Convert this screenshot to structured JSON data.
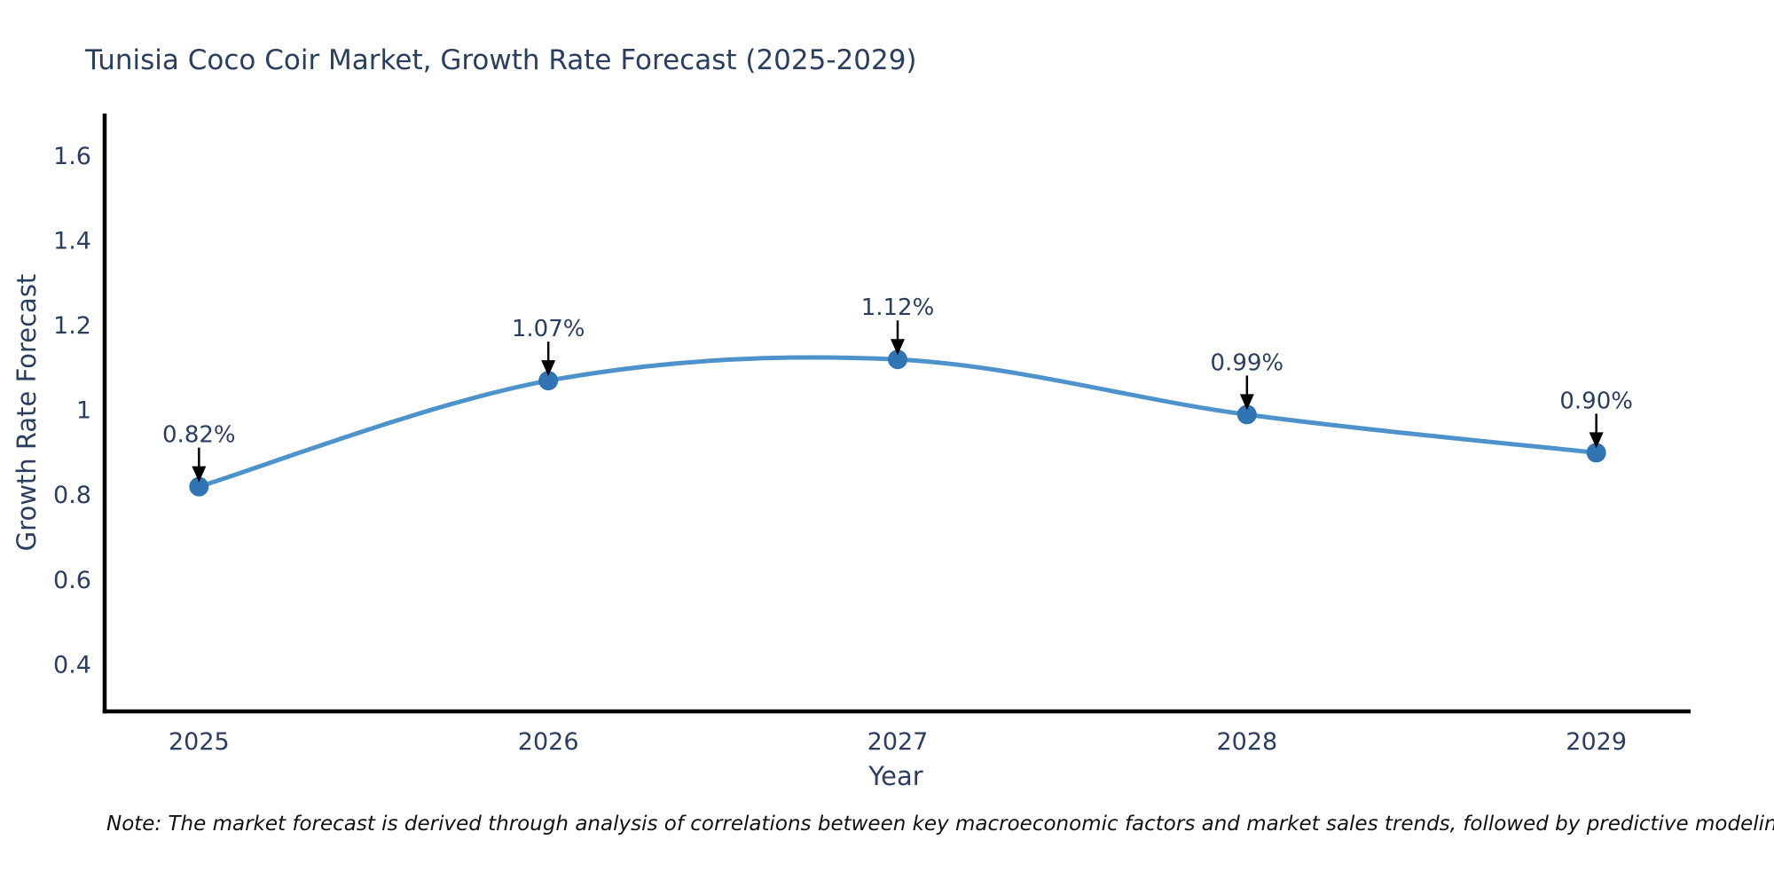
{
  "title": "Tunisia Coco Coir Market, Growth Rate Forecast (2025-2029)",
  "footnote": "Note: The market forecast is derived through analysis of correlations between key macroeconomic factors and market sales trends, followed by predictive modeling to project future sales",
  "colors": {
    "text": "#2a3f5f",
    "line": "#4e92cc",
    "marker": "#3174b3",
    "axis": "#000000",
    "annotation": "#2a3f5f",
    "arrow": "#000000",
    "background": "#ffffff"
  },
  "chart_data": {
    "type": "line",
    "title": "Tunisia Coco Coir Market, Growth Rate Forecast (2025-2029)",
    "xlabel": "Year",
    "ylabel": "Growth Rate Forecast",
    "x": [
      2025,
      2026,
      2027,
      2028,
      2029
    ],
    "series": [
      {
        "name": "Growth Rate Forecast",
        "values": [
          0.82,
          1.07,
          1.12,
          0.99,
          0.9
        ]
      }
    ],
    "point_labels": [
      "0.82%",
      "1.07%",
      "1.12%",
      "0.99%",
      "0.90%"
    ],
    "line_shape": "spline",
    "markers": true,
    "grid": false,
    "legend": "none",
    "xlim": [
      2024.73,
      2029.27
    ],
    "ylim": [
      0.29,
      1.7
    ],
    "xticks": {
      "values": [
        2025,
        2026,
        2027,
        2028,
        2029
      ],
      "labels": [
        "2025",
        "2026",
        "2027",
        "2028",
        "2029"
      ]
    },
    "yticks": {
      "values": [
        0.4,
        0.6,
        0.8,
        1,
        1.2,
        1.4,
        1.6
      ],
      "labels": [
        "0.4",
        "0.6",
        "0.8",
        "1",
        "1.2",
        "1.4",
        "1.6"
      ]
    },
    "annotation_style": "black down-arrow pointing to each data point with percent label above"
  }
}
